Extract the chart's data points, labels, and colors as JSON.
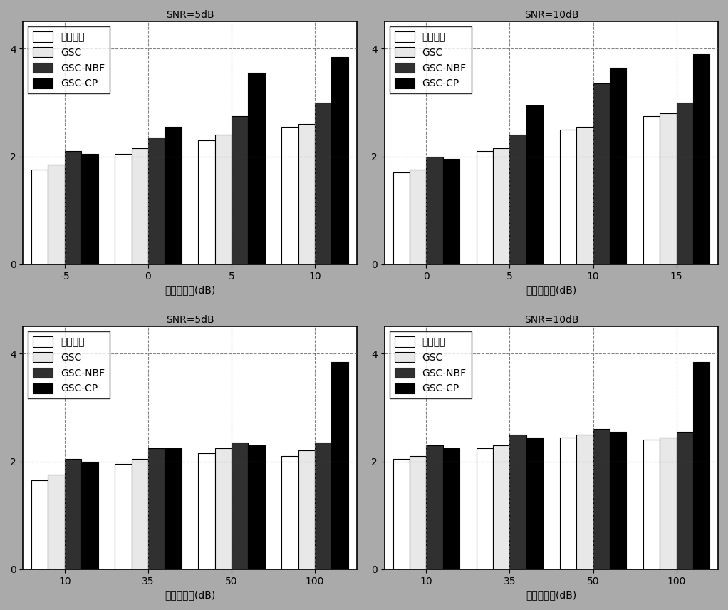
{
  "legend_labels": [
    "带噪语音",
    "GSC",
    "GSC-NBF",
    "GSC-CP"
  ],
  "bar_colors": [
    "#ffffff",
    "#e8e8e8",
    "#303030",
    "#000000"
  ],
  "bar_edgecolors": [
    "#000000",
    "#000000",
    "#000000",
    "#000000"
  ],
  "bar_width": 0.2,
  "grid_color": "#666666",
  "grid_linestyle": "--",
  "background_color": "#ffffff",
  "figure_background": "#aaaaaa",
  "subplots": [
    {
      "title": "SNR=5dB",
      "xlabel": "输入信噪比(dB)",
      "xtick_labels": [
        "-5",
        "0",
        "5",
        "10"
      ],
      "ylim": [
        0,
        4.5
      ],
      "ytick_vals": [
        0,
        2,
        4
      ],
      "ytick_labels": [
        "0",
        "2",
        "4"
      ],
      "series": {
        "带噪语音": [
          1.75,
          2.05,
          2.3,
          2.55
        ],
        "GSC": [
          1.85,
          2.15,
          2.4,
          2.6
        ],
        "GSC-NBF": [
          2.1,
          2.35,
          2.75,
          3.0
        ],
        "GSC-CP": [
          2.05,
          2.55,
          3.55,
          3.85
        ]
      }
    },
    {
      "title": "SNR=10dB",
      "xlabel": "输入信噪比(dB)",
      "xtick_labels": [
        "0",
        "5",
        "10",
        "15"
      ],
      "ylim": [
        0,
        4.5
      ],
      "ytick_vals": [
        0,
        2,
        4
      ],
      "ytick_labels": [
        "0",
        "2",
        "4"
      ],
      "series": {
        "带噪语音": [
          1.7,
          2.1,
          2.5,
          2.75
        ],
        "GSC": [
          1.75,
          2.15,
          2.55,
          2.8
        ],
        "GSC-NBF": [
          2.0,
          2.4,
          3.35,
          3.0
        ],
        "GSC-CP": [
          1.95,
          2.95,
          3.65,
          3.9
        ]
      }
    },
    {
      "title": "SNR=5dB",
      "xlabel": "输入信噪比(dB)",
      "xtick_labels": [
        "10",
        "35",
        "50",
        "100"
      ],
      "ylim": [
        0,
        4.5
      ],
      "ytick_vals": [
        0,
        2,
        4
      ],
      "ytick_labels": [
        "0",
        "2",
        "4"
      ],
      "series": {
        "带噪语音": [
          1.65,
          1.95,
          2.15,
          2.1
        ],
        "GSC": [
          1.75,
          2.05,
          2.25,
          2.2
        ],
        "GSC-NBF": [
          2.05,
          2.25,
          2.35,
          2.35
        ],
        "GSC-CP": [
          2.0,
          2.25,
          2.3,
          3.85
        ]
      }
    },
    {
      "title": "SNR=10dB",
      "xlabel": "输入信噪比(dB)",
      "xtick_labels": [
        "10",
        "35",
        "50",
        "100"
      ],
      "ylim": [
        0,
        4.5
      ],
      "ytick_vals": [
        0,
        2,
        4
      ],
      "ytick_labels": [
        "0",
        "2",
        "4"
      ],
      "series": {
        "带噪语音": [
          2.05,
          2.25,
          2.45,
          2.4
        ],
        "GSC": [
          2.1,
          2.3,
          2.5,
          2.45
        ],
        "GSC-NBF": [
          2.3,
          2.5,
          2.6,
          2.55
        ],
        "GSC-CP": [
          2.25,
          2.45,
          2.55,
          3.85
        ]
      }
    }
  ]
}
